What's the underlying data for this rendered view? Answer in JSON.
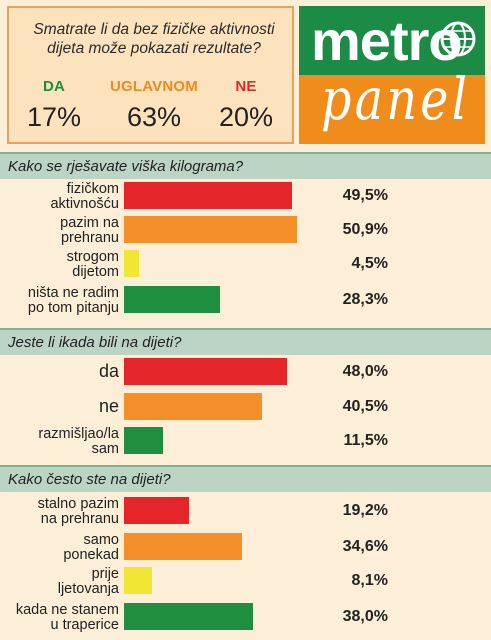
{
  "poll": {
    "question": "Smatrate li da bez fizičke aktivnosti dijeta može pokazati rezultate?",
    "answers": [
      {
        "label": "DA",
        "value": "17%"
      },
      {
        "label": "UGLAVNOM",
        "value": "63%"
      },
      {
        "label": "NE",
        "value": "20%"
      }
    ]
  },
  "logo": {
    "line1": "metro",
    "line2": "panel"
  },
  "colors": {
    "red": "#e4262a",
    "orange": "#f3902a",
    "yellow": "#f2e634",
    "green": "#1f8f3f"
  },
  "chart_data": [
    {
      "type": "bar",
      "title": "Kako se rješavate viška kilograma?",
      "categories": [
        "fizičkom\naktivnošću",
        "pazim na\nprehranu",
        "strogom\ndijetom",
        "ništa ne radim\npo tom pitanju"
      ],
      "values": [
        49.5,
        50.9,
        4.5,
        28.3
      ],
      "value_labels": [
        "49,5%",
        "50,9%",
        "4,5%",
        "28,3%"
      ],
      "bar_colors": [
        "red",
        "orange",
        "yellow",
        "green"
      ]
    },
    {
      "type": "bar",
      "title": "Jeste li ikada bili na dijeti?",
      "categories": [
        "da",
        "ne",
        "razmišljao/la\nsam"
      ],
      "values": [
        48.0,
        40.5,
        11.5
      ],
      "value_labels": [
        "48,0%",
        "40,5%",
        "11,5%"
      ],
      "bar_colors": [
        "red",
        "orange",
        "green"
      ]
    },
    {
      "type": "bar",
      "title": "Kako često ste na dijeti?",
      "categories": [
        "stalno pazim\nna prehranu",
        "samo\nponekad",
        "prije\nljetovanja",
        "kada ne stanem\nu traperice"
      ],
      "values": [
        19.2,
        34.6,
        8.1,
        38.0
      ],
      "value_labels": [
        "19,2%",
        "34,6%",
        "8,1%",
        "38,0%"
      ],
      "bar_colors": [
        "red",
        "orange",
        "yellow",
        "green"
      ]
    }
  ]
}
